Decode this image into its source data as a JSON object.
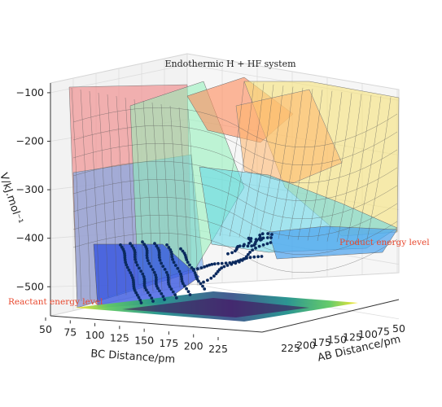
{
  "chart_data": {
    "type": "surface3d",
    "title": "Endothermic H + HF system",
    "xlabel": "BC Distance/pm",
    "ylabel": "AB Distance/pm",
    "zlabel": "V/kJ.mol⁻¹",
    "x_ticks": [
      "50",
      "75",
      "100",
      "125",
      "150",
      "175",
      "200",
      "225"
    ],
    "y_ticks": [
      "50",
      "75",
      "100",
      "125",
      "150",
      "175",
      "200",
      "225"
    ],
    "z_ticks": [
      "−100",
      "−200",
      "−300",
      "−400",
      "−500"
    ],
    "z_tick_values": [
      -100,
      -200,
      -300,
      -400,
      -500
    ],
    "x_range": [
      50,
      235
    ],
    "y_range": [
      50,
      235
    ],
    "z_range": [
      -560,
      -80
    ],
    "colormap": "jet (surface) / viridis (floor contour)",
    "trajectory_color": "#0b2a5e",
    "annotations": [
      {
        "text": "Reactant energy level",
        "color": "#ff4500"
      },
      {
        "text": "Product energy level",
        "color": "#ff4500"
      }
    ]
  }
}
